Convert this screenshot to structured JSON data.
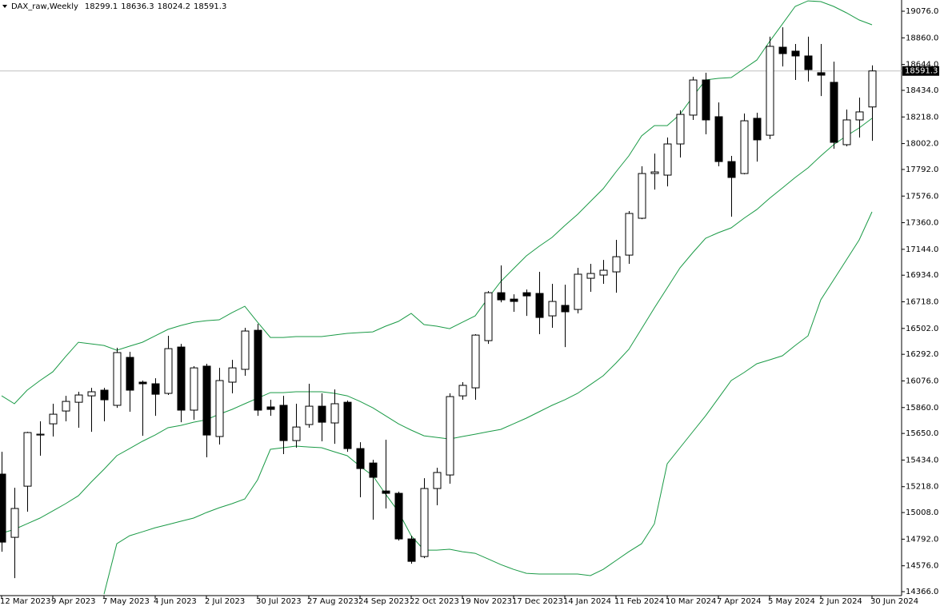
{
  "chart_data": {
    "type": "candlestick",
    "title": "DAX_raw,Weekly",
    "up_color": "#ffffff",
    "down_color": "#000000",
    "band_color": "#1a9a46",
    "price_line_color": "#c0c0c0",
    "ylim": [
      14334,
      19167
    ],
    "yticks": [
      {
        "value": 19076,
        "label": "19076.0"
      },
      {
        "value": 18860,
        "label": "18860.0"
      },
      {
        "value": 18644,
        "label": "18644.0"
      },
      {
        "value": 18434,
        "label": "18434.0"
      },
      {
        "value": 18218,
        "label": "18218.0"
      },
      {
        "value": 18002,
        "label": "18002.0"
      },
      {
        "value": 17792,
        "label": "17792.0"
      },
      {
        "value": 17576,
        "label": "17576.0"
      },
      {
        "value": 17360,
        "label": "17360.0"
      },
      {
        "value": 17144,
        "label": "17144.0"
      },
      {
        "value": 16934,
        "label": "16934.0"
      },
      {
        "value": 16718,
        "label": "16718.0"
      },
      {
        "value": 16502,
        "label": "16502.0"
      },
      {
        "value": 16292,
        "label": "16292.0"
      },
      {
        "value": 16076,
        "label": "16076.0"
      },
      {
        "value": 15860,
        "label": "15860.0"
      },
      {
        "value": 15650,
        "label": "15650.0"
      },
      {
        "value": 15434,
        "label": "15434.0"
      },
      {
        "value": 15218,
        "label": "15218.0"
      },
      {
        "value": 15008,
        "label": "15008.0"
      },
      {
        "value": 14792,
        "label": "14792.0"
      },
      {
        "value": 14576,
        "label": "14576.0"
      },
      {
        "value": 14366,
        "label": "14366.0"
      }
    ],
    "categories": [
      "12 Mar 2023",
      null,
      null,
      null,
      "9 Apr 2023",
      null,
      null,
      null,
      "7 May 2023",
      null,
      null,
      null,
      "4 Jun 2023",
      null,
      null,
      null,
      "2 Jul 2023",
      null,
      null,
      null,
      "30 Jul 2023",
      null,
      null,
      null,
      "27 Aug 2023",
      null,
      null,
      null,
      "24 Sep 2023",
      null,
      null,
      null,
      "22 Oct 2023",
      null,
      null,
      null,
      "19 Nov 2023",
      null,
      null,
      null,
      "17 Dec 2023",
      null,
      null,
      null,
      "14 Jan 2024",
      null,
      null,
      null,
      "11 Feb 2024",
      null,
      null,
      null,
      "10 Mar 2024",
      null,
      null,
      null,
      "7 Apr 2024",
      null,
      null,
      null,
      "5 May 2024",
      null,
      null,
      null,
      "2 Jun 2024",
      null,
      null,
      null,
      "30 Jun 2024"
    ],
    "open": [
      15320,
      14807,
      15222,
      15637,
      15728,
      15832,
      15903,
      15955,
      16001,
      15878,
      16267,
      16066,
      16053,
      15975,
      16351,
      15839,
      16196,
      15625,
      16066,
      16170,
      16487,
      15865,
      15878,
      15592,
      15722,
      15871,
      15735,
      15903,
      15527,
      15410,
      15183,
      15164,
      14794,
      14651,
      15203,
      15313,
      15955,
      16020,
      16403,
      16792,
      16740,
      16792,
      16786,
      16604,
      16689,
      16656,
      16909,
      16935,
      16961,
      17097,
      17396,
      17759,
      17746,
      17999,
      18233,
      18518,
      18220,
      17856,
      17759,
      18207,
      18070,
      18784,
      18752,
      18713,
      18577,
      18499,
      17993,
      18194,
      18299.1
    ],
    "high": [
      15501,
      15209,
      15663,
      15748,
      15891,
      15955,
      15988,
      16020,
      16020,
      16345,
      16312,
      16079,
      16098,
      16442,
      16377,
      16196,
      16215,
      16182,
      16247,
      16507,
      16539,
      15923,
      15955,
      15891,
      16053,
      15975,
      16007,
      15917,
      15579,
      15436,
      15599,
      15177,
      14820,
      15287,
      15371,
      15975,
      16066,
      16455,
      16805,
      17013,
      16779,
      16818,
      16961,
      16864,
      16857,
      16994,
      17026,
      17058,
      17221,
      17454,
      17818,
      17921,
      18051,
      18272,
      18544,
      18577,
      18336,
      17902,
      18246,
      18252,
      18869,
      18946,
      18810,
      18869,
      18810,
      18667,
      18278,
      18375,
      18636.3
    ],
    "low": [
      14690,
      14476,
      15015,
      15469,
      15625,
      15748,
      15696,
      15663,
      15748,
      15858,
      15826,
      15631,
      15793,
      15962,
      15741,
      15761,
      15456,
      15560,
      15975,
      16118,
      15793,
      15793,
      15482,
      15534,
      15696,
      15586,
      15566,
      15501,
      15132,
      14950,
      15041,
      14781,
      14593,
      14638,
      15067,
      15242,
      15923,
      15923,
      16377,
      16714,
      16637,
      16604,
      16455,
      16507,
      16351,
      16624,
      16799,
      16864,
      16792,
      17026,
      17389,
      17629,
      17655,
      17889,
      18194,
      18077,
      17818,
      17409,
      17753,
      17856,
      18038,
      18628,
      18518,
      18505,
      18388,
      17960,
      17980,
      18051,
      18024.2
    ],
    "close": [
      14768,
      15041,
      15657,
      15644,
      15806,
      15910,
      15962,
      15988,
      15923,
      16306,
      16001,
      16053,
      15968,
      16338,
      15839,
      16182,
      15637,
      16079,
      16182,
      16481,
      15839,
      15845,
      15592,
      15702,
      15871,
      15741,
      15891,
      15527,
      15365,
      15294,
      15164,
      14794,
      14612,
      15203,
      15333,
      15949,
      16040,
      16448,
      16792,
      16734,
      16721,
      16766,
      16591,
      16721,
      16637,
      16942,
      16948,
      16974,
      17084,
      17435,
      17759,
      17772,
      17999,
      18239,
      18518,
      18194,
      17856,
      17727,
      18187,
      18032,
      18791,
      18732,
      18713,
      18602,
      18557,
      18012,
      18194,
      18259,
      18591.3
    ],
    "bands": [
      {
        "values": [
          15955,
          15891,
          16001,
          16079,
          16150,
          16273,
          16390,
          16377,
          16364,
          16325,
          16358,
          16390,
          16442,
          16494,
          16526,
          16552,
          16565,
          16572,
          16630,
          16682,
          16552,
          16429,
          16429,
          16436,
          16436,
          16436,
          16449,
          16462,
          16468,
          16474,
          16520,
          16559,
          16624,
          16533,
          16520,
          16500,
          16552,
          16604,
          16747,
          16883,
          16987,
          17091,
          17169,
          17240,
          17337,
          17428,
          17532,
          17636,
          17772,
          17902,
          18064,
          18148,
          18148,
          18239,
          18382,
          18518,
          18531,
          18538,
          18609,
          18680,
          18830,
          18972,
          19115,
          19160,
          19154,
          19115,
          19063,
          19005,
          18966
        ]
      },
      {
        "values": [
          14840,
          14872,
          14917,
          14963,
          15021,
          15080,
          15144,
          15255,
          15359,
          15469,
          15527,
          15586,
          15637,
          15696,
          15715,
          15741,
          15761,
          15806,
          15845,
          15891,
          15936,
          15981,
          15981,
          15988,
          15988,
          15988,
          15975,
          15955,
          15910,
          15858,
          15793,
          15728,
          15677,
          15631,
          15618,
          15605,
          15625,
          15644,
          15664,
          15683,
          15728,
          15774,
          15826,
          15878,
          15923,
          15975,
          16046,
          16118,
          16221,
          16332,
          16500,
          16669,
          16831,
          16994,
          17117,
          17234,
          17279,
          17318,
          17396,
          17467,
          17558,
          17642,
          17727,
          17805,
          17902,
          17993,
          18064,
          18129,
          18207
        ]
      },
      {
        "values": [
          null,
          null,
          null,
          null,
          null,
          null,
          null,
          null,
          14346,
          14755,
          14820,
          14852,
          14885,
          14911,
          14937,
          14963,
          15008,
          15047,
          15080,
          15118,
          15274,
          15521,
          15534,
          15547,
          15540,
          15534,
          15501,
          15469,
          15384,
          15307,
          15157,
          15015,
          14820,
          14703,
          14703,
          14710,
          14690,
          14677,
          14632,
          14586,
          14547,
          14515,
          14509,
          14509,
          14509,
          14509,
          14496,
          14547,
          14619,
          14690,
          14755,
          14917,
          15404,
          15534,
          15664,
          15793,
          15936,
          16079,
          16144,
          16215,
          16247,
          16280,
          16364,
          16442,
          16734,
          16896,
          17058,
          17221,
          17448
        ]
      }
    ]
  }
}
